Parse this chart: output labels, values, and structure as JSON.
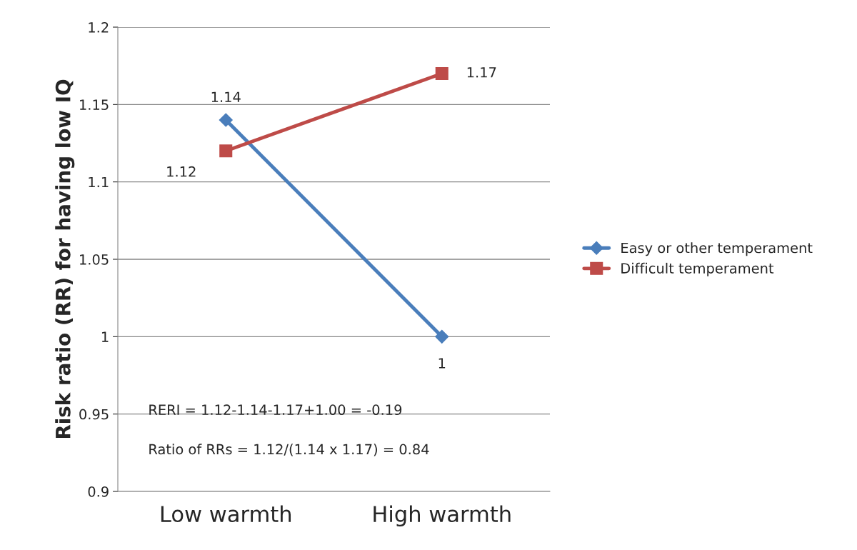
{
  "chart_data": {
    "type": "line",
    "ylabel": "Risk ratio (RR) for having low IQ",
    "categories": [
      "Low warmth",
      "High warmth"
    ],
    "series": [
      {
        "name": "Easy or other temperament",
        "color": "#4a7ebb",
        "marker": "diamond",
        "values": [
          1.14,
          1.0
        ],
        "value_labels": [
          "1.14",
          "1"
        ]
      },
      {
        "name": "Difficult temperament",
        "color": "#be4b48",
        "marker": "square",
        "values": [
          1.12,
          1.17
        ],
        "value_labels": [
          "1.12",
          "1.17"
        ]
      }
    ],
    "ylim": [
      0.9,
      1.2
    ],
    "yticks": [
      0.9,
      0.95,
      1,
      1.05,
      1.1,
      1.15,
      1.2
    ],
    "grid": "y",
    "legend": "right",
    "line_style": "solid",
    "annotations": [
      "RERI = 1.12-1.14-1.17+1.00 = -0.19",
      "Ratio of RRs = 1.12/(1.14 x 1.17) = 0.84"
    ]
  }
}
